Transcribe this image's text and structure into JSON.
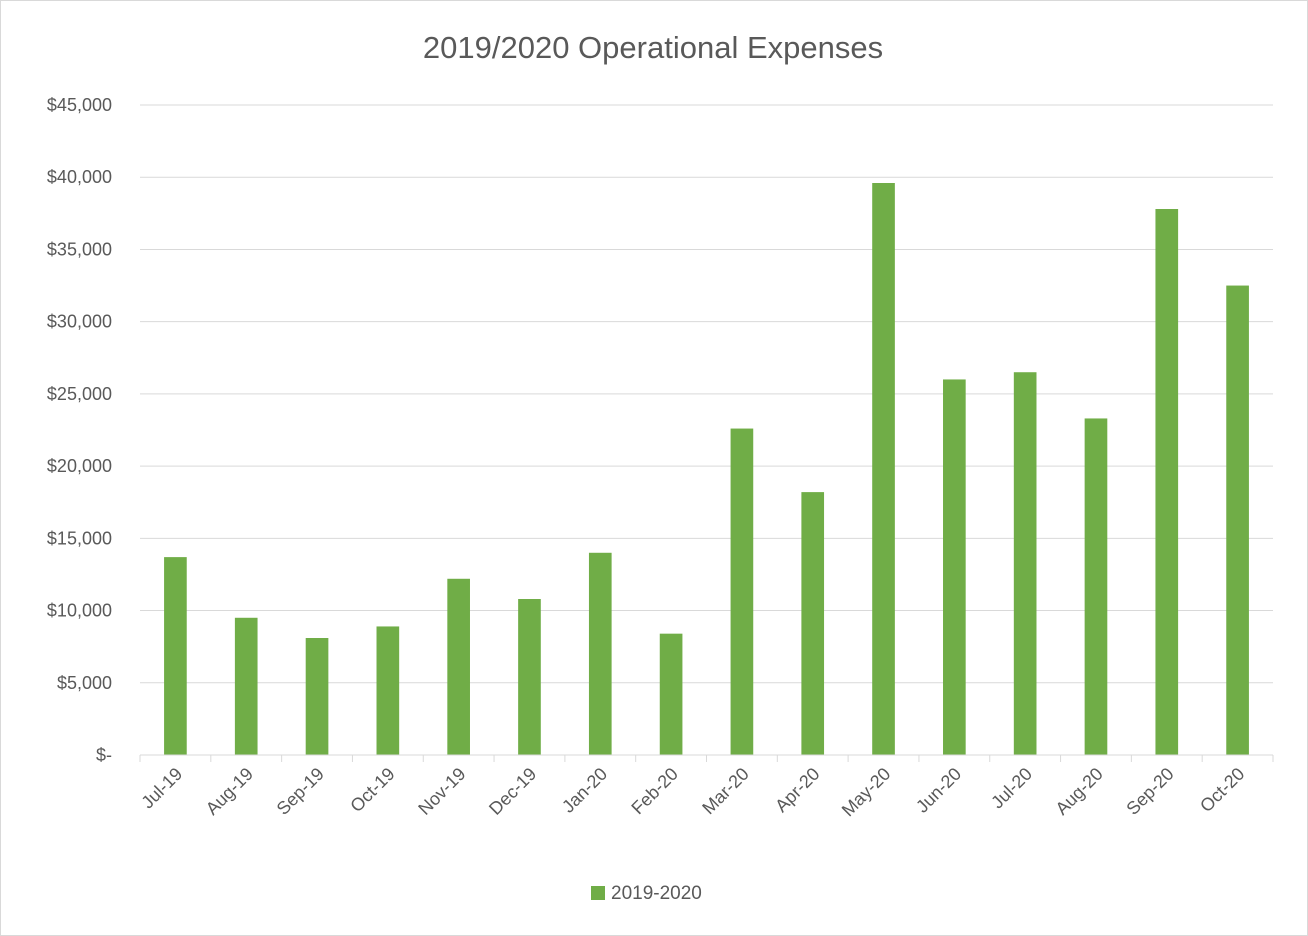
{
  "chart_data": {
    "type": "bar",
    "title": "2019/2020 Operational Expenses",
    "xlabel": "",
    "ylabel": "",
    "categories": [
      "Jul-19",
      "Aug-19",
      "Sep-19",
      "Oct-19",
      "Nov-19",
      "Dec-19",
      "Jan-20",
      "Feb-20",
      "Mar-20",
      "Apr-20",
      "May-20",
      "Jun-20",
      "Jul-20",
      "Aug-20",
      "Sep-20",
      "Oct-20"
    ],
    "series": [
      {
        "name": "2019-2020",
        "color": "#70ad47",
        "values": [
          13700,
          9500,
          8100,
          8900,
          12200,
          10800,
          14000,
          8400,
          22600,
          18200,
          39600,
          26000,
          26500,
          23300,
          37800,
          32500
        ]
      }
    ],
    "ylim": [
      0,
      45000
    ],
    "yticks": [
      0,
      5000,
      10000,
      15000,
      20000,
      25000,
      30000,
      35000,
      40000,
      45000
    ],
    "ytick_labels": [
      "$-",
      "$5,000",
      "$10,000",
      "$15,000",
      "$20,000",
      "$25,000",
      "$30,000",
      "$35,000",
      "$40,000",
      "$45,000"
    ],
    "grid": true,
    "legend": "bottom"
  }
}
